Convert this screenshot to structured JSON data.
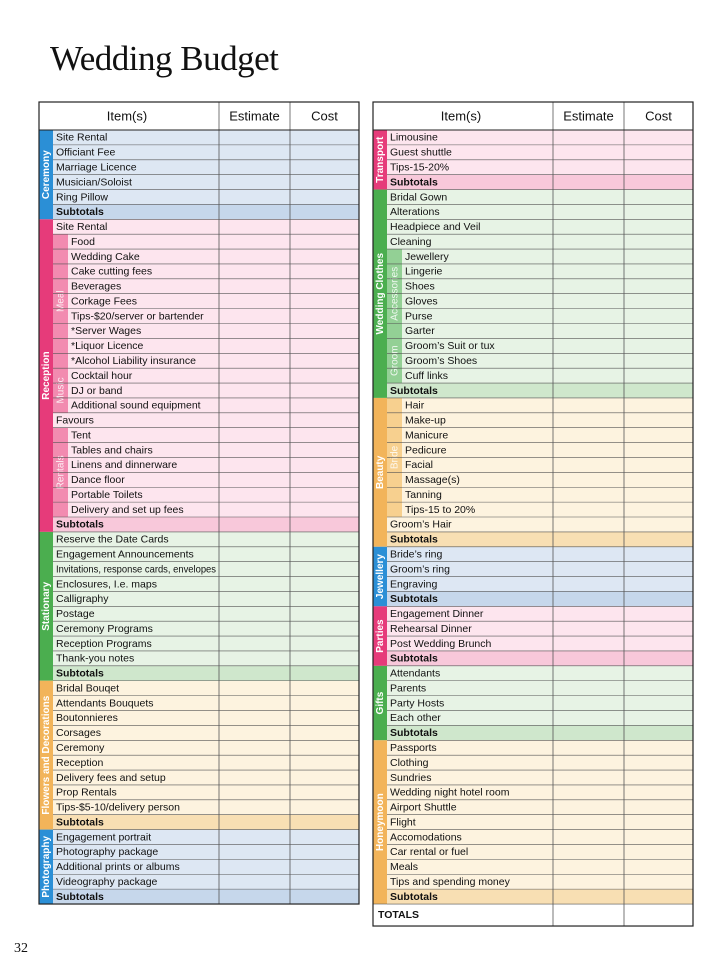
{
  "title": "Wedding Budget",
  "page_number": "32",
  "left_table": {
    "header": [
      "Item(s)",
      "Estimate",
      "Cost"
    ],
    "sections": [
      {
        "label": "Ceremony",
        "items": [
          "Site Rental",
          "Officiant Fee",
          "Marriage Licence",
          "Musician/Soloist",
          "Ring Pillow"
        ],
        "subtotal": "Subtotals"
      },
      {
        "label": "Reception",
        "items": [
          "Site Rental",
          {
            "label": "Meal",
            "items": [
              "Food",
              "Wedding Cake",
              "Cake cutting fees",
              "Beverages",
              "Corkage Fees",
              "Tips-$20/server or bartender",
              "*Server Wages",
              "*Liquor Licence",
              "*Alcohol Liability insurance"
            ]
          },
          {
            "label": "Music",
            "items": [
              "Cocktail hour",
              "DJ or band",
              "Additional sound equipment"
            ]
          },
          "Favours",
          {
            "label": "Rentals",
            "items": [
              "Tent",
              "Tables and chairs",
              "Linens and dinnerware",
              "Dance floor",
              "Portable Toilets",
              "Delivery and set up fees"
            ]
          }
        ],
        "subtotal": "Subtotals"
      },
      {
        "label": "Stationary",
        "items": [
          "Reserve the Date Cards",
          "Engagement Announcements",
          "Invitations, response cards, envelopes",
          "Enclosures, I.e. maps",
          "Calligraphy",
          "Postage",
          "Ceremony Programs",
          "Reception Programs",
          "Thank-you notes"
        ],
        "subtotal": "Subtotals"
      },
      {
        "label": "Flowers and Decorations",
        "items": [
          "Bridal Bouqet",
          "Attendants Bouquets",
          "Boutonnieres",
          "Corsages",
          "Ceremony",
          "Reception",
          "Delivery fees and setup",
          "Prop Rentals",
          "Tips-$5-10/delivery person"
        ],
        "subtotal": "Subtotals"
      },
      {
        "label": "Photography",
        "items": [
          "Engagement portrait",
          "Photography package",
          "Additional prints or albums",
          "Videography package"
        ],
        "subtotal": "Subtotals"
      }
    ]
  },
  "right_table": {
    "header": [
      "Item(s)",
      "Estimate",
      "Cost"
    ],
    "sections": [
      {
        "label": "Transport",
        "items": [
          "Limousine",
          "Guest shuttle",
          "Tips-15-20%"
        ],
        "subtotal": "Subtotals"
      },
      {
        "label": "Wedding Clothes",
        "items": [
          "Bridal Gown",
          "Alterations",
          "Headpiece and Veil",
          "Cleaning",
          {
            "label": "Accessories",
            "items": [
              "Jewellery",
              "Lingerie",
              "Shoes",
              "Gloves",
              "Purse",
              "Garter"
            ]
          },
          {
            "label": "Groom",
            "items": [
              "Groom’s Suit or tux",
              "Groom’s Shoes",
              "Cuff links"
            ]
          }
        ],
        "subtotal": "Subtotals"
      },
      {
        "label": "Beauty",
        "items": [
          {
            "label": "Bride",
            "items": [
              "Hair",
              "Make-up",
              "Manicure",
              "Pedicure",
              "Facial",
              "Massage(s)",
              "Tanning",
              "Tips-15 to 20%"
            ]
          },
          "Groom’s Hair"
        ],
        "subtotal": "Subtotals"
      },
      {
        "label": "Jewellery",
        "items": [
          "Bride’s ring",
          "Groom’s ring",
          "Engraving"
        ],
        "subtotal": "Subtotals"
      },
      {
        "label": "Parties",
        "items": [
          "Engagement Dinner",
          "Rehearsal Dinner",
          "Post Wedding Brunch"
        ],
        "subtotal": "Subtotals"
      },
      {
        "label": "Gifts",
        "items": [
          "Attendants",
          "Parents",
          "Party Hosts",
          "Each other"
        ],
        "subtotal": "Subtotals"
      },
      {
        "label": "Honeymoon",
        "items": [
          "Passports",
          "Clothing",
          "Sundries",
          "Wedding night hotel room",
          "Airport Shuttle",
          "Flight",
          "Accomodations",
          "Car rental or fuel",
          "Meals",
          "Tips and spending money"
        ],
        "subtotal": "Subtotals"
      }
    ],
    "total": "TOTALS"
  }
}
